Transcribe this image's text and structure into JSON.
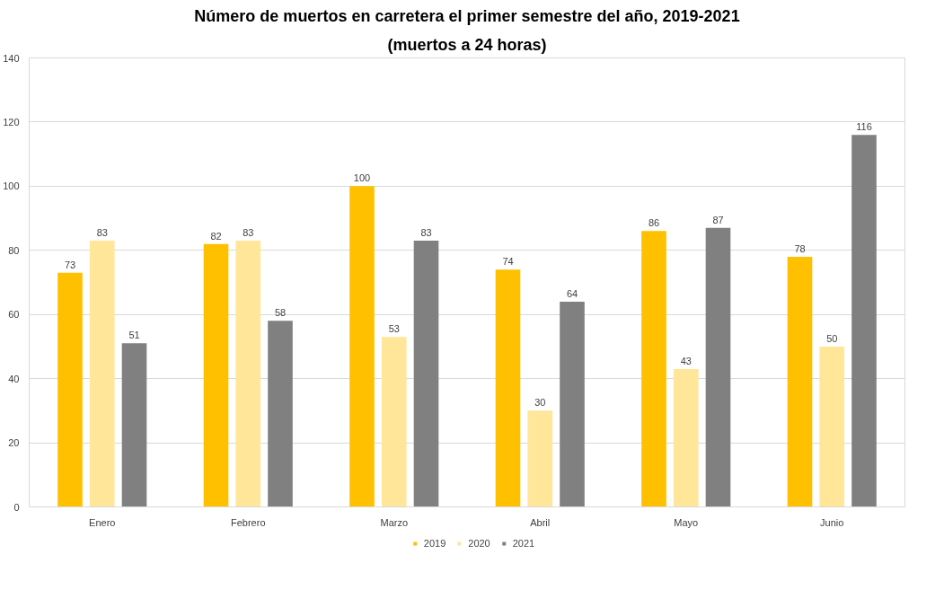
{
  "chart_data": {
    "type": "bar",
    "title": "Número de muertos en carretera el primer semestre del año, 2019-2021",
    "subtitle": "(muertos a 24 horas)",
    "categories": [
      "Enero",
      "Febrero",
      "Marzo",
      "Abril",
      "Mayo",
      "Junio"
    ],
    "series": [
      {
        "name": "2019",
        "color": "#ffc000",
        "values": [
          73,
          82,
          100,
          74,
          86,
          78
        ]
      },
      {
        "name": "2020",
        "color": "#ffe699",
        "values": [
          83,
          83,
          53,
          30,
          43,
          50
        ]
      },
      {
        "name": "2021",
        "color": "#808080",
        "values": [
          51,
          58,
          83,
          64,
          87,
          116
        ]
      }
    ],
    "ylim": [
      0,
      140
    ],
    "yticks": [
      0,
      20,
      40,
      60,
      80,
      100,
      120,
      140
    ],
    "grid": "y",
    "legend": "bottom",
    "data_labels": true
  }
}
